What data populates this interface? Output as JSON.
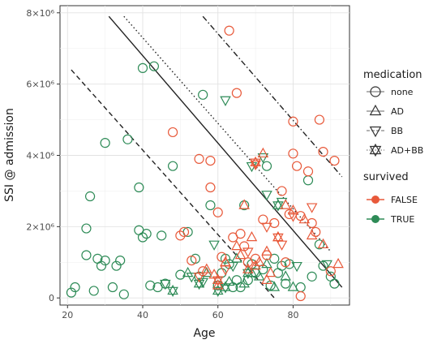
{
  "chart_data": {
    "type": "scatter",
    "xlabel": "Age",
    "ylabel": "SSI @ admission",
    "xlim": [
      18,
      95
    ],
    "ylim": [
      -200000,
      8200000
    ],
    "x_ticks": [
      20,
      40,
      60,
      80
    ],
    "x_tick_labels": [
      "20",
      "40",
      "60",
      "80"
    ],
    "y_ticks": [
      0,
      2000000,
      4000000,
      6000000,
      8000000
    ],
    "y_tick_labels": [
      "0",
      "2×10⁶",
      "4×10⁶",
      "6×10⁶",
      "8×10⁶"
    ],
    "grid": true,
    "colors": {
      "FALSE": "#e8593a",
      "TRUE": "#2e8b57"
    },
    "legend": {
      "placement": "right",
      "shape_title": "medication",
      "shapes": [
        {
          "key": "none",
          "label": "none",
          "marker": "circle"
        },
        {
          "key": "AD",
          "label": "AD",
          "marker": "triangle-up"
        },
        {
          "key": "BB",
          "label": "BB",
          "marker": "triangle-down"
        },
        {
          "key": "AD+BB",
          "label": "AD+BB",
          "marker": "star"
        }
      ],
      "color_title": "survived",
      "colors": [
        {
          "key": "FALSE",
          "label": "FALSE"
        },
        {
          "key": "TRUE",
          "label": "TRUE"
        }
      ]
    },
    "lines": [
      {
        "style": "dashed",
        "x": [
          21,
          75
        ],
        "y": [
          6400000,
          0
        ]
      },
      {
        "style": "solid",
        "x": [
          31,
          93
        ],
        "y": [
          7900000,
          300000
        ]
      },
      {
        "style": "dotted",
        "x": [
          35,
          90
        ],
        "y": [
          7900000,
          1300000
        ]
      },
      {
        "style": "dotdash",
        "x": [
          56,
          93
        ],
        "y": [
          7900000,
          3400000
        ]
      }
    ],
    "series": [
      {
        "survived": "TRUE",
        "medication": "none",
        "points": [
          [
            21,
            150000
          ],
          [
            22,
            300000
          ],
          [
            25,
            1200000
          ],
          [
            25,
            1950000
          ],
          [
            26,
            2850000
          ],
          [
            27,
            200000
          ],
          [
            28,
            1100000
          ],
          [
            29,
            900000
          ],
          [
            30,
            4350000
          ],
          [
            30,
            1050000
          ],
          [
            32,
            300000
          ],
          [
            33,
            900000
          ],
          [
            34,
            1050000
          ],
          [
            35,
            100000
          ],
          [
            36,
            4450000
          ],
          [
            39,
            1900000
          ],
          [
            39,
            3100000
          ],
          [
            40,
            6450000
          ],
          [
            40,
            1700000
          ],
          [
            41,
            1800000
          ],
          [
            42,
            350000
          ],
          [
            43,
            6500000
          ],
          [
            44,
            300000
          ],
          [
            45,
            1750000
          ],
          [
            46,
            400000
          ],
          [
            48,
            3700000
          ],
          [
            50,
            650000
          ],
          [
            52,
            1850000
          ],
          [
            54,
            1100000
          ],
          [
            55,
            600000
          ],
          [
            56,
            5700000
          ],
          [
            58,
            2600000
          ],
          [
            60,
            350000
          ],
          [
            61,
            700000
          ],
          [
            62,
            1100000
          ],
          [
            63,
            950000
          ],
          [
            64,
            300000
          ],
          [
            65,
            500000
          ],
          [
            66,
            300000
          ],
          [
            67,
            2600000
          ],
          [
            68,
            500000
          ],
          [
            69,
            950000
          ],
          [
            70,
            700000
          ],
          [
            72,
            800000
          ],
          [
            73,
            3700000
          ],
          [
            74,
            350000
          ],
          [
            75,
            1100000
          ],
          [
            76,
            700000
          ],
          [
            77,
            900000
          ],
          [
            78,
            400000
          ],
          [
            79,
            950000
          ],
          [
            82,
            300000
          ],
          [
            84,
            3300000
          ],
          [
            85,
            600000
          ],
          [
            87,
            1500000
          ],
          [
            88,
            900000
          ],
          [
            90,
            600000
          ],
          [
            91,
            400000
          ]
        ]
      },
      {
        "survived": "TRUE",
        "medication": "AD",
        "points": [
          [
            52,
            700000
          ],
          [
            57,
            700000
          ],
          [
            60,
            500000
          ],
          [
            63,
            450000
          ],
          [
            65,
            1100000
          ],
          [
            67,
            400000
          ],
          [
            69,
            700000
          ],
          [
            71,
            600000
          ],
          [
            73,
            950000
          ],
          [
            75,
            300000
          ],
          [
            78,
            600000
          ],
          [
            80,
            300000
          ]
        ]
      },
      {
        "survived": "TRUE",
        "medication": "BB",
        "points": [
          [
            46,
            400000
          ],
          [
            53,
            600000
          ],
          [
            56,
            450000
          ],
          [
            59,
            1500000
          ],
          [
            62,
            5550000
          ],
          [
            64,
            900000
          ],
          [
            69,
            3700000
          ],
          [
            72,
            3950000
          ],
          [
            73,
            2900000
          ],
          [
            77,
            2700000
          ],
          [
            81,
            900000
          ],
          [
            89,
            950000
          ]
        ]
      },
      {
        "survived": "TRUE",
        "medication": "AD+BB",
        "points": [
          [
            48,
            200000
          ],
          [
            55,
            400000
          ],
          [
            60,
            200000
          ],
          [
            62,
            300000
          ],
          [
            68,
            700000
          ],
          [
            76,
            2600000
          ]
        ]
      },
      {
        "survived": "FALSE",
        "medication": "none",
        "points": [
          [
            48,
            4650000
          ],
          [
            50,
            1750000
          ],
          [
            51,
            1850000
          ],
          [
            53,
            1050000
          ],
          [
            55,
            3900000
          ],
          [
            56,
            750000
          ],
          [
            58,
            3850000
          ],
          [
            58,
            3100000
          ],
          [
            60,
            2400000
          ],
          [
            61,
            1150000
          ],
          [
            63,
            7500000
          ],
          [
            64,
            1700000
          ],
          [
            65,
            5750000
          ],
          [
            66,
            1800000
          ],
          [
            67,
            1450000
          ],
          [
            68,
            1000000
          ],
          [
            70,
            1100000
          ],
          [
            72,
            2200000
          ],
          [
            73,
            1200000
          ],
          [
            75,
            2100000
          ],
          [
            77,
            3000000
          ],
          [
            78,
            1000000
          ],
          [
            79,
            2350000
          ],
          [
            80,
            4950000
          ],
          [
            80,
            4050000
          ],
          [
            81,
            3700000
          ],
          [
            82,
            2300000
          ],
          [
            84,
            3550000
          ],
          [
            85,
            2100000
          ],
          [
            86,
            1850000
          ],
          [
            87,
            5000000
          ],
          [
            88,
            4100000
          ],
          [
            90,
            750000
          ],
          [
            91,
            3850000
          ],
          [
            82,
            50000
          ]
        ]
      },
      {
        "survived": "FALSE",
        "medication": "AD",
        "points": [
          [
            57,
            800000
          ],
          [
            59,
            650000
          ],
          [
            60,
            350000
          ],
          [
            62,
            1000000
          ],
          [
            65,
            1450000
          ],
          [
            66,
            1200000
          ],
          [
            67,
            2600000
          ],
          [
            68,
            800000
          ],
          [
            69,
            1700000
          ],
          [
            70,
            900000
          ],
          [
            71,
            1000000
          ],
          [
            72,
            4050000
          ],
          [
            73,
            1300000
          ],
          [
            74,
            700000
          ],
          [
            76,
            1700000
          ],
          [
            78,
            2600000
          ],
          [
            80,
            2450000
          ],
          [
            83,
            2200000
          ],
          [
            85,
            1750000
          ],
          [
            88,
            1500000
          ],
          [
            92,
            950000
          ],
          [
            73,
            500000
          ]
        ]
      },
      {
        "survived": "FALSE",
        "medication": "BB",
        "points": [
          [
            55,
            600000
          ],
          [
            62,
            800000
          ],
          [
            68,
            1300000
          ],
          [
            70,
            3750000
          ],
          [
            73,
            2000000
          ],
          [
            77,
            1500000
          ],
          [
            80,
            2300000
          ],
          [
            85,
            2550000
          ]
        ]
      },
      {
        "survived": "FALSE",
        "medication": "AD+BB",
        "points": [
          [
            60,
            500000
          ],
          [
            70,
            3800000
          ],
          [
            76,
            1700000
          ]
        ]
      }
    ]
  }
}
